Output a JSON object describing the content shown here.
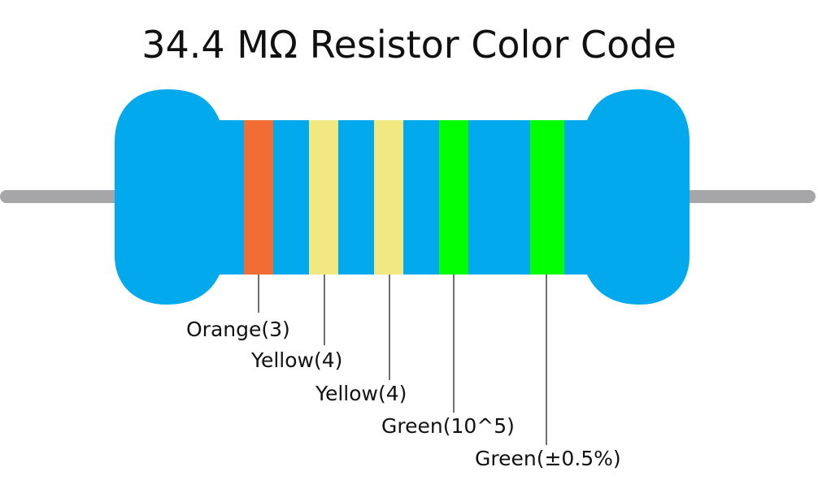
{
  "title": "34.4 MΩ Resistor Color Code",
  "colors": {
    "body": "#03a9ed",
    "lead": "#a6a6a8",
    "leader_line": "#111111"
  },
  "bands": [
    {
      "label": "Orange(3)",
      "color": "#f26d34"
    },
    {
      "label": "Yellow(4)",
      "color": "#f2e882"
    },
    {
      "label": "Yellow(4)",
      "color": "#f2e882"
    },
    {
      "label": "Green(10^5)",
      "color": "#00ff00"
    },
    {
      "label": "Green(±0.5%)",
      "color": "#00ff00"
    }
  ]
}
